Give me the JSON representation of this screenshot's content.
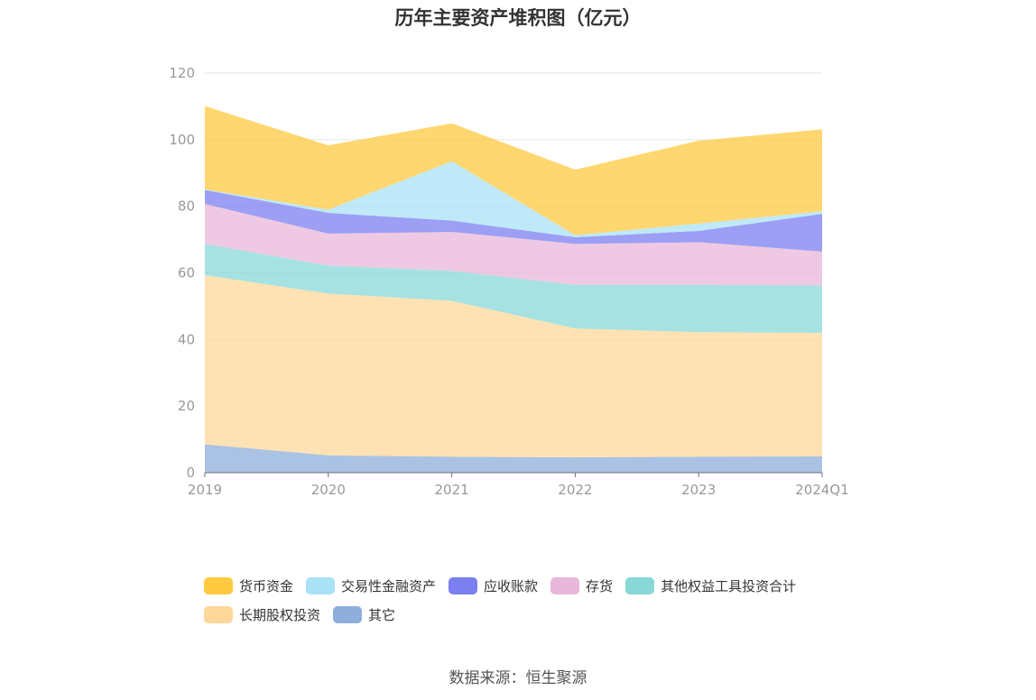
{
  "chart_data": {
    "type": "area",
    "stacked": true,
    "title": "历年主要资产堆积图（亿元）",
    "categories": [
      "2019",
      "2020",
      "2021",
      "2022",
      "2023",
      "2024Q1"
    ],
    "ylim": [
      0,
      120
    ],
    "yticks": [
      0,
      20,
      40,
      60,
      80,
      100,
      120
    ],
    "grid": true,
    "legend_position": "bottom",
    "series": [
      {
        "name": "其它",
        "color": "#8eaedb",
        "values": [
          8.5,
          5.2,
          4.8,
          4.6,
          4.8,
          4.9
        ]
      },
      {
        "name": "长期股权投资",
        "color": "#fdd89a",
        "values": [
          50.8,
          48.6,
          46.8,
          38.7,
          37.4,
          37.1
        ]
      },
      {
        "name": "其他权益工具投资合计",
        "color": "#89d8d8",
        "values": [
          9.4,
          8.4,
          9.0,
          13.1,
          14.2,
          14.2
        ]
      },
      {
        "name": "存货",
        "color": "#e9b7d9",
        "values": [
          12.0,
          9.6,
          11.7,
          12.3,
          12.8,
          10.2
        ]
      },
      {
        "name": "应收账款",
        "color": "#7b7ff0",
        "values": [
          4.2,
          6.2,
          3.4,
          2.0,
          3.4,
          11.3
        ]
      },
      {
        "name": "交易性金融资产",
        "color": "#a9e1f7",
        "values": [
          0.2,
          1.0,
          17.8,
          0.6,
          2.2,
          0.8
        ]
      },
      {
        "name": "货币资金",
        "color": "#ffc940",
        "values": [
          25.0,
          19.3,
          11.4,
          19.7,
          24.9,
          24.6
        ]
      }
    ]
  },
  "legend": {
    "items": [
      {
        "label": "货币资金",
        "color": "#ffc940"
      },
      {
        "label": "交易性金融资产",
        "color": "#a9e1f7"
      },
      {
        "label": "应收账款",
        "color": "#7b7ff0"
      },
      {
        "label": "存货",
        "color": "#e9b7d9"
      },
      {
        "label": "其他权益工具投资合计",
        "color": "#89d8d8"
      },
      {
        "label": "长期股权投资",
        "color": "#fdd89a"
      },
      {
        "label": "其它",
        "color": "#8eaedb"
      }
    ]
  },
  "source": "数据来源：恒生聚源"
}
